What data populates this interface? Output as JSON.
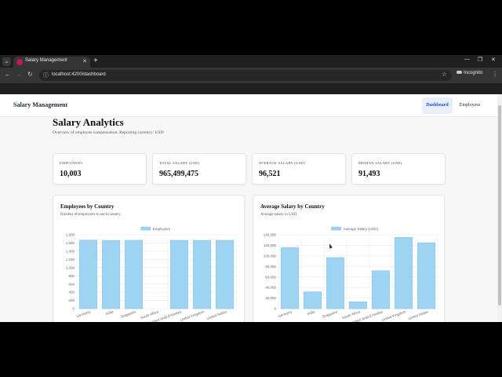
{
  "browser": {
    "tab_title": "Salary Management",
    "url": "localhost:4200/dashboard",
    "incognito_label": "Incognito",
    "tab_menu_icon": "chevron-down-icon",
    "close_icon": "close-icon"
  },
  "app": {
    "brand": "Salary Management",
    "nav": [
      {
        "label": "Dashboard",
        "active": true
      },
      {
        "label": "Employees",
        "active": false
      }
    ]
  },
  "page": {
    "title": "Salary Analytics",
    "subtitle": "Overview of employee compensation. Reporting currency: USD"
  },
  "kpis": [
    {
      "label": "EMPLOYEES",
      "value": "10,003"
    },
    {
      "label": "TOTAL SALARY (USD)",
      "value": "965,499,475"
    },
    {
      "label": "AVERAGE SALARY (USD)",
      "value": "96,521"
    },
    {
      "label": "MEDIAN SALARY (USD)",
      "value": "91,493"
    }
  ],
  "chart_data": [
    {
      "type": "bar",
      "title": "Employees by Country",
      "subtitle": "Number of employees in each country.",
      "categories": [
        "Germany",
        "India",
        "Singapore",
        "South Africa",
        "United Arab Emirates",
        "United Kingdom",
        "United States"
      ],
      "series": [
        {
          "name": "Employees",
          "values": [
            1670,
            1665,
            1668,
            0,
            1667,
            1666,
            1667
          ]
        }
      ],
      "ylim": [
        0,
        1800
      ],
      "yticks": [
        "0",
        "200",
        "400",
        "600",
        "800",
        "1,000",
        "1,200",
        "1,400",
        "1,600",
        "1,800"
      ],
      "grid": true,
      "legend": "top-center",
      "color": "#9fd3f2",
      "border_color": "#7cc0ea"
    },
    {
      "type": "bar",
      "title": "Average Salary by Country",
      "subtitle": "Average salary in USD.",
      "categories": [
        "Germany",
        "India",
        "Singapore",
        "South Africa",
        "United Arab Emirates",
        "United Kingdom",
        "United States"
      ],
      "series": [
        {
          "name": "Average Salary (USD)",
          "values": [
            116000,
            32000,
            97000,
            13000,
            72000,
            135000,
            125000
          ]
        }
      ],
      "ylim": [
        0,
        140000
      ],
      "yticks": [
        "0",
        "20,000",
        "40,000",
        "60,000",
        "80,000",
        "100,000",
        "120,000",
        "140,000"
      ],
      "grid": true,
      "legend": "top-center",
      "color": "#9fd3f2",
      "border_color": "#7cc0ea"
    }
  ]
}
